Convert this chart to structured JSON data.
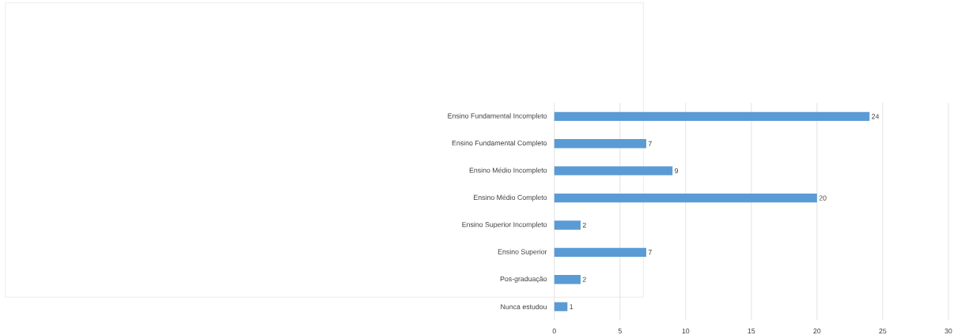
{
  "chart_data": {
    "type": "bar",
    "orientation": "horizontal",
    "categories": [
      "Ensino Fundamental Incompleto",
      "Ensino Fundamental Completo",
      "Ensino Médio Incompleto",
      "Ensino Médio Completo",
      "Ensino Superior Incompleto",
      "Ensino Superior",
      "Pos-graduação",
      "Nunca estudou"
    ],
    "values": [
      24,
      7,
      9,
      20,
      2,
      7,
      2,
      1
    ],
    "color": "#5b9bd5",
    "xlim": [
      0,
      30
    ],
    "xticks": [
      0,
      5,
      10,
      15,
      20,
      25,
      30
    ],
    "grid": "x",
    "data_labels": true
  }
}
